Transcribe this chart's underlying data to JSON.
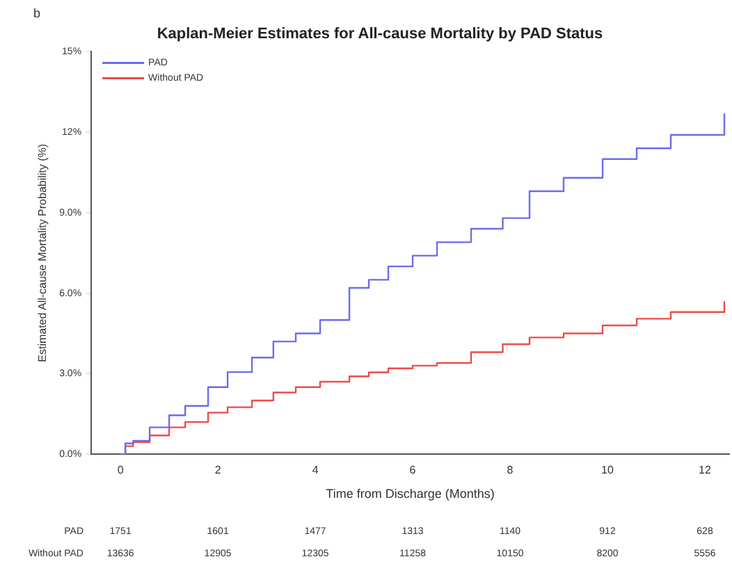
{
  "chart_data": {
    "type": "step",
    "title": "Kaplan-Meier Estimates for All-cause Mortality by PAD Status",
    "xlabel": "Time from Discharge (Months)",
    "ylabel": "Estimated All-cause Mortality Probability (%)",
    "x": [
      0,
      0.1,
      0.26,
      0.6,
      1.0,
      1.33,
      1.8,
      2.2,
      2.7,
      3.14,
      3.6,
      4.1,
      4.7,
      5.1,
      5.5,
      6.0,
      6.5,
      7.2,
      7.85,
      8.4,
      9.1,
      9.9,
      10.6,
      11.3,
      12.4
    ],
    "series": [
      {
        "name": "PAD",
        "color": "#6b6bf0",
        "values": [
          0,
          0.4,
          0.5,
          1.0,
          1.45,
          1.8,
          2.5,
          3.06,
          3.6,
          4.2,
          4.5,
          5.0,
          6.2,
          6.5,
          7.0,
          7.4,
          7.9,
          8.4,
          8.8,
          9.8,
          10.3,
          11.0,
          11.4,
          11.9,
          12.7
        ]
      },
      {
        "name": "Without PAD",
        "color": "#ee4b4b",
        "values": [
          0,
          0.3,
          0.45,
          0.7,
          1.0,
          1.2,
          1.55,
          1.75,
          2.0,
          2.3,
          2.5,
          2.7,
          2.9,
          3.05,
          3.2,
          3.3,
          3.4,
          3.8,
          4.1,
          4.35,
          4.5,
          4.8,
          5.05,
          5.3,
          5.7
        ]
      }
    ],
    "xlim": [
      -0.6,
      12.5
    ],
    "xticks": [
      0,
      2,
      4,
      6,
      8,
      10,
      12
    ],
    "ylim": [
      0,
      15
    ],
    "yticks": [
      {
        "value": 0,
        "label": "0.0%"
      },
      {
        "value": 3,
        "label": "3.0%"
      },
      {
        "value": 6,
        "label": "6.0%"
      },
      {
        "value": 9,
        "label": "9.0%"
      },
      {
        "value": 12,
        "label": "12%"
      },
      {
        "value": 15,
        "label": "15%"
      }
    ],
    "legend": "top left",
    "grid": false,
    "marker": "none",
    "line_style": "solid",
    "annotations": [
      "b",
      "PAD",
      "1751",
      "1601",
      "1477",
      "1313",
      "1140",
      "912",
      "628",
      "Without PAD",
      "13636",
      "12905",
      "12305",
      "11258",
      "10150",
      "8200",
      "5556"
    ]
  }
}
